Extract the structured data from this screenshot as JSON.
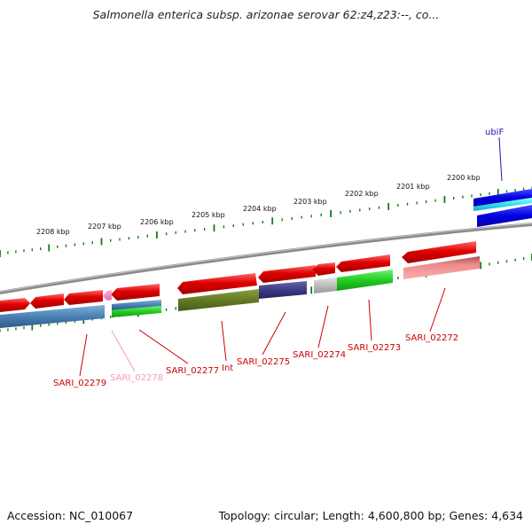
{
  "title": "Salmonella enterica subsp. arizonae serovar 62:z4,z23:--, co...",
  "accession_text": "Accession: NC_010067",
  "summary_text": "Topology: circular; Length: 4,600,800 bp; Genes: 4,634",
  "ruler": {
    "tick_color": "#1a7a1a",
    "labels": [
      "2208 kbp",
      "2207 kbp",
      "2206 kbp",
      "2205 kbp",
      "2204 kbp",
      "2203 kbp",
      "2202 kbp",
      "2201 kbp",
      "2200 kbp"
    ]
  },
  "colors": {
    "forward_gene": "#e00000",
    "backbone": "#8a8a8a",
    "label_red": "#cc0000",
    "label_pink": "#f29ac0",
    "label_blue": "#1a1aaa"
  },
  "gene_labels": [
    {
      "text": "ubiF",
      "color": "#1a1aaa"
    },
    {
      "text": "SARI_02279",
      "color": "#cc0000"
    },
    {
      "text": "SARI_02278",
      "color": "#f29ac0"
    },
    {
      "text": "SARI_02277",
      "color": "#cc0000"
    },
    {
      "text": "Int",
      "color": "#cc0000"
    },
    {
      "text": "SARI_02275",
      "color": "#cc0000"
    },
    {
      "text": "SARI_02274",
      "color": "#cc0000"
    },
    {
      "text": "SARI_02273",
      "color": "#cc0000"
    },
    {
      "text": "SARI_02272",
      "color": "#cc0000"
    }
  ]
}
